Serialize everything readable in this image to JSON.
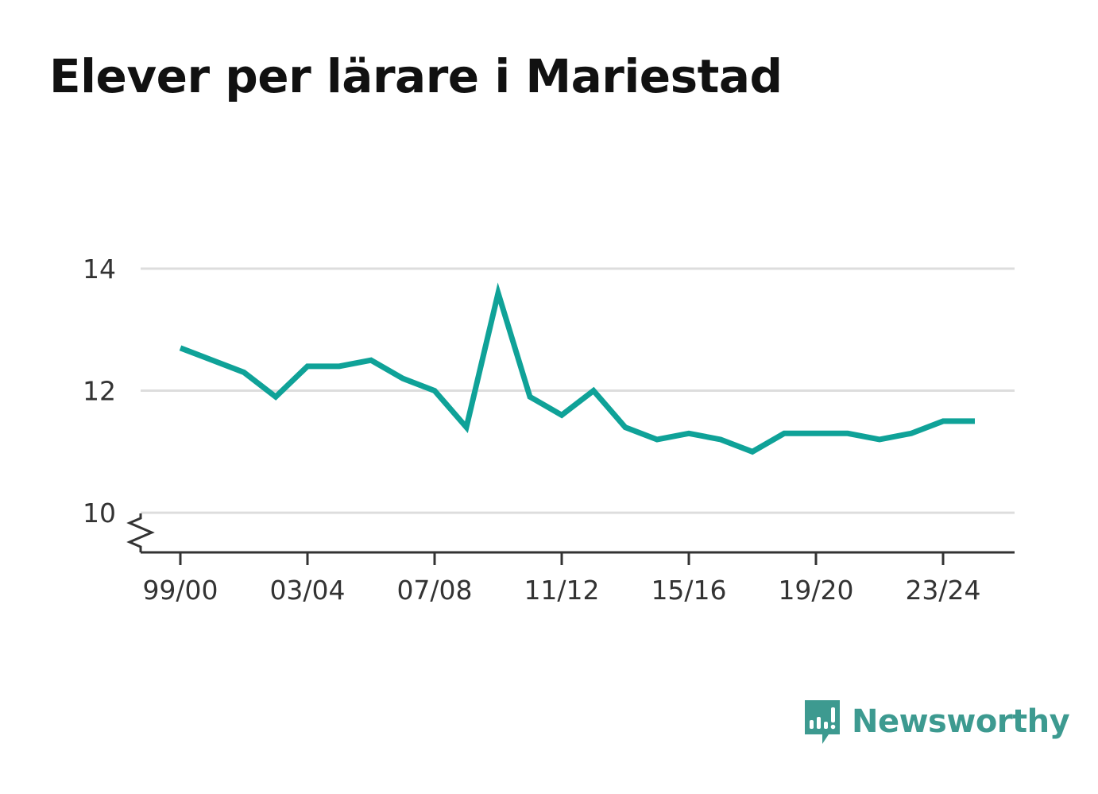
{
  "title": "Elever per lärare i Mariestad",
  "brand": {
    "name": "Newsworthy",
    "icon": "newsworthy-logo-icon",
    "color": "#3d9a90"
  },
  "colors": {
    "line": "#0fa298",
    "grid": "#dddddd",
    "axis": "#333333",
    "text": "#333333"
  },
  "chart_data": {
    "type": "line",
    "title": "Elever per lärare i Mariestad",
    "xlabel": "",
    "ylabel": "",
    "x": [
      "99/00",
      "00/01",
      "01/02",
      "02/03",
      "03/04",
      "04/05",
      "05/06",
      "06/07",
      "07/08",
      "08/09",
      "09/10",
      "10/11",
      "11/12",
      "12/13",
      "13/14",
      "14/15",
      "15/16",
      "16/17",
      "17/18",
      "18/19",
      "19/20",
      "20/21",
      "21/22",
      "22/23",
      "23/24",
      "24/25"
    ],
    "series": [
      {
        "values": [
          12.7,
          12.5,
          12.3,
          11.9,
          12.4,
          12.4,
          12.5,
          12.2,
          12.0,
          11.4,
          13.6,
          11.9,
          11.6,
          12.0,
          11.4,
          11.2,
          11.3,
          11.2,
          11.0,
          11.3,
          11.3,
          11.3,
          11.2,
          11.3,
          11.5,
          11.5
        ]
      }
    ],
    "x_tick_labels": [
      "99/00",
      "03/04",
      "07/08",
      "11/12",
      "15/16",
      "19/20",
      "23/24"
    ],
    "y_ticks": [
      10,
      12,
      14
    ],
    "ylim": [
      9.35,
      14
    ],
    "y_axis_break": true,
    "grid": true,
    "legend": "none"
  }
}
